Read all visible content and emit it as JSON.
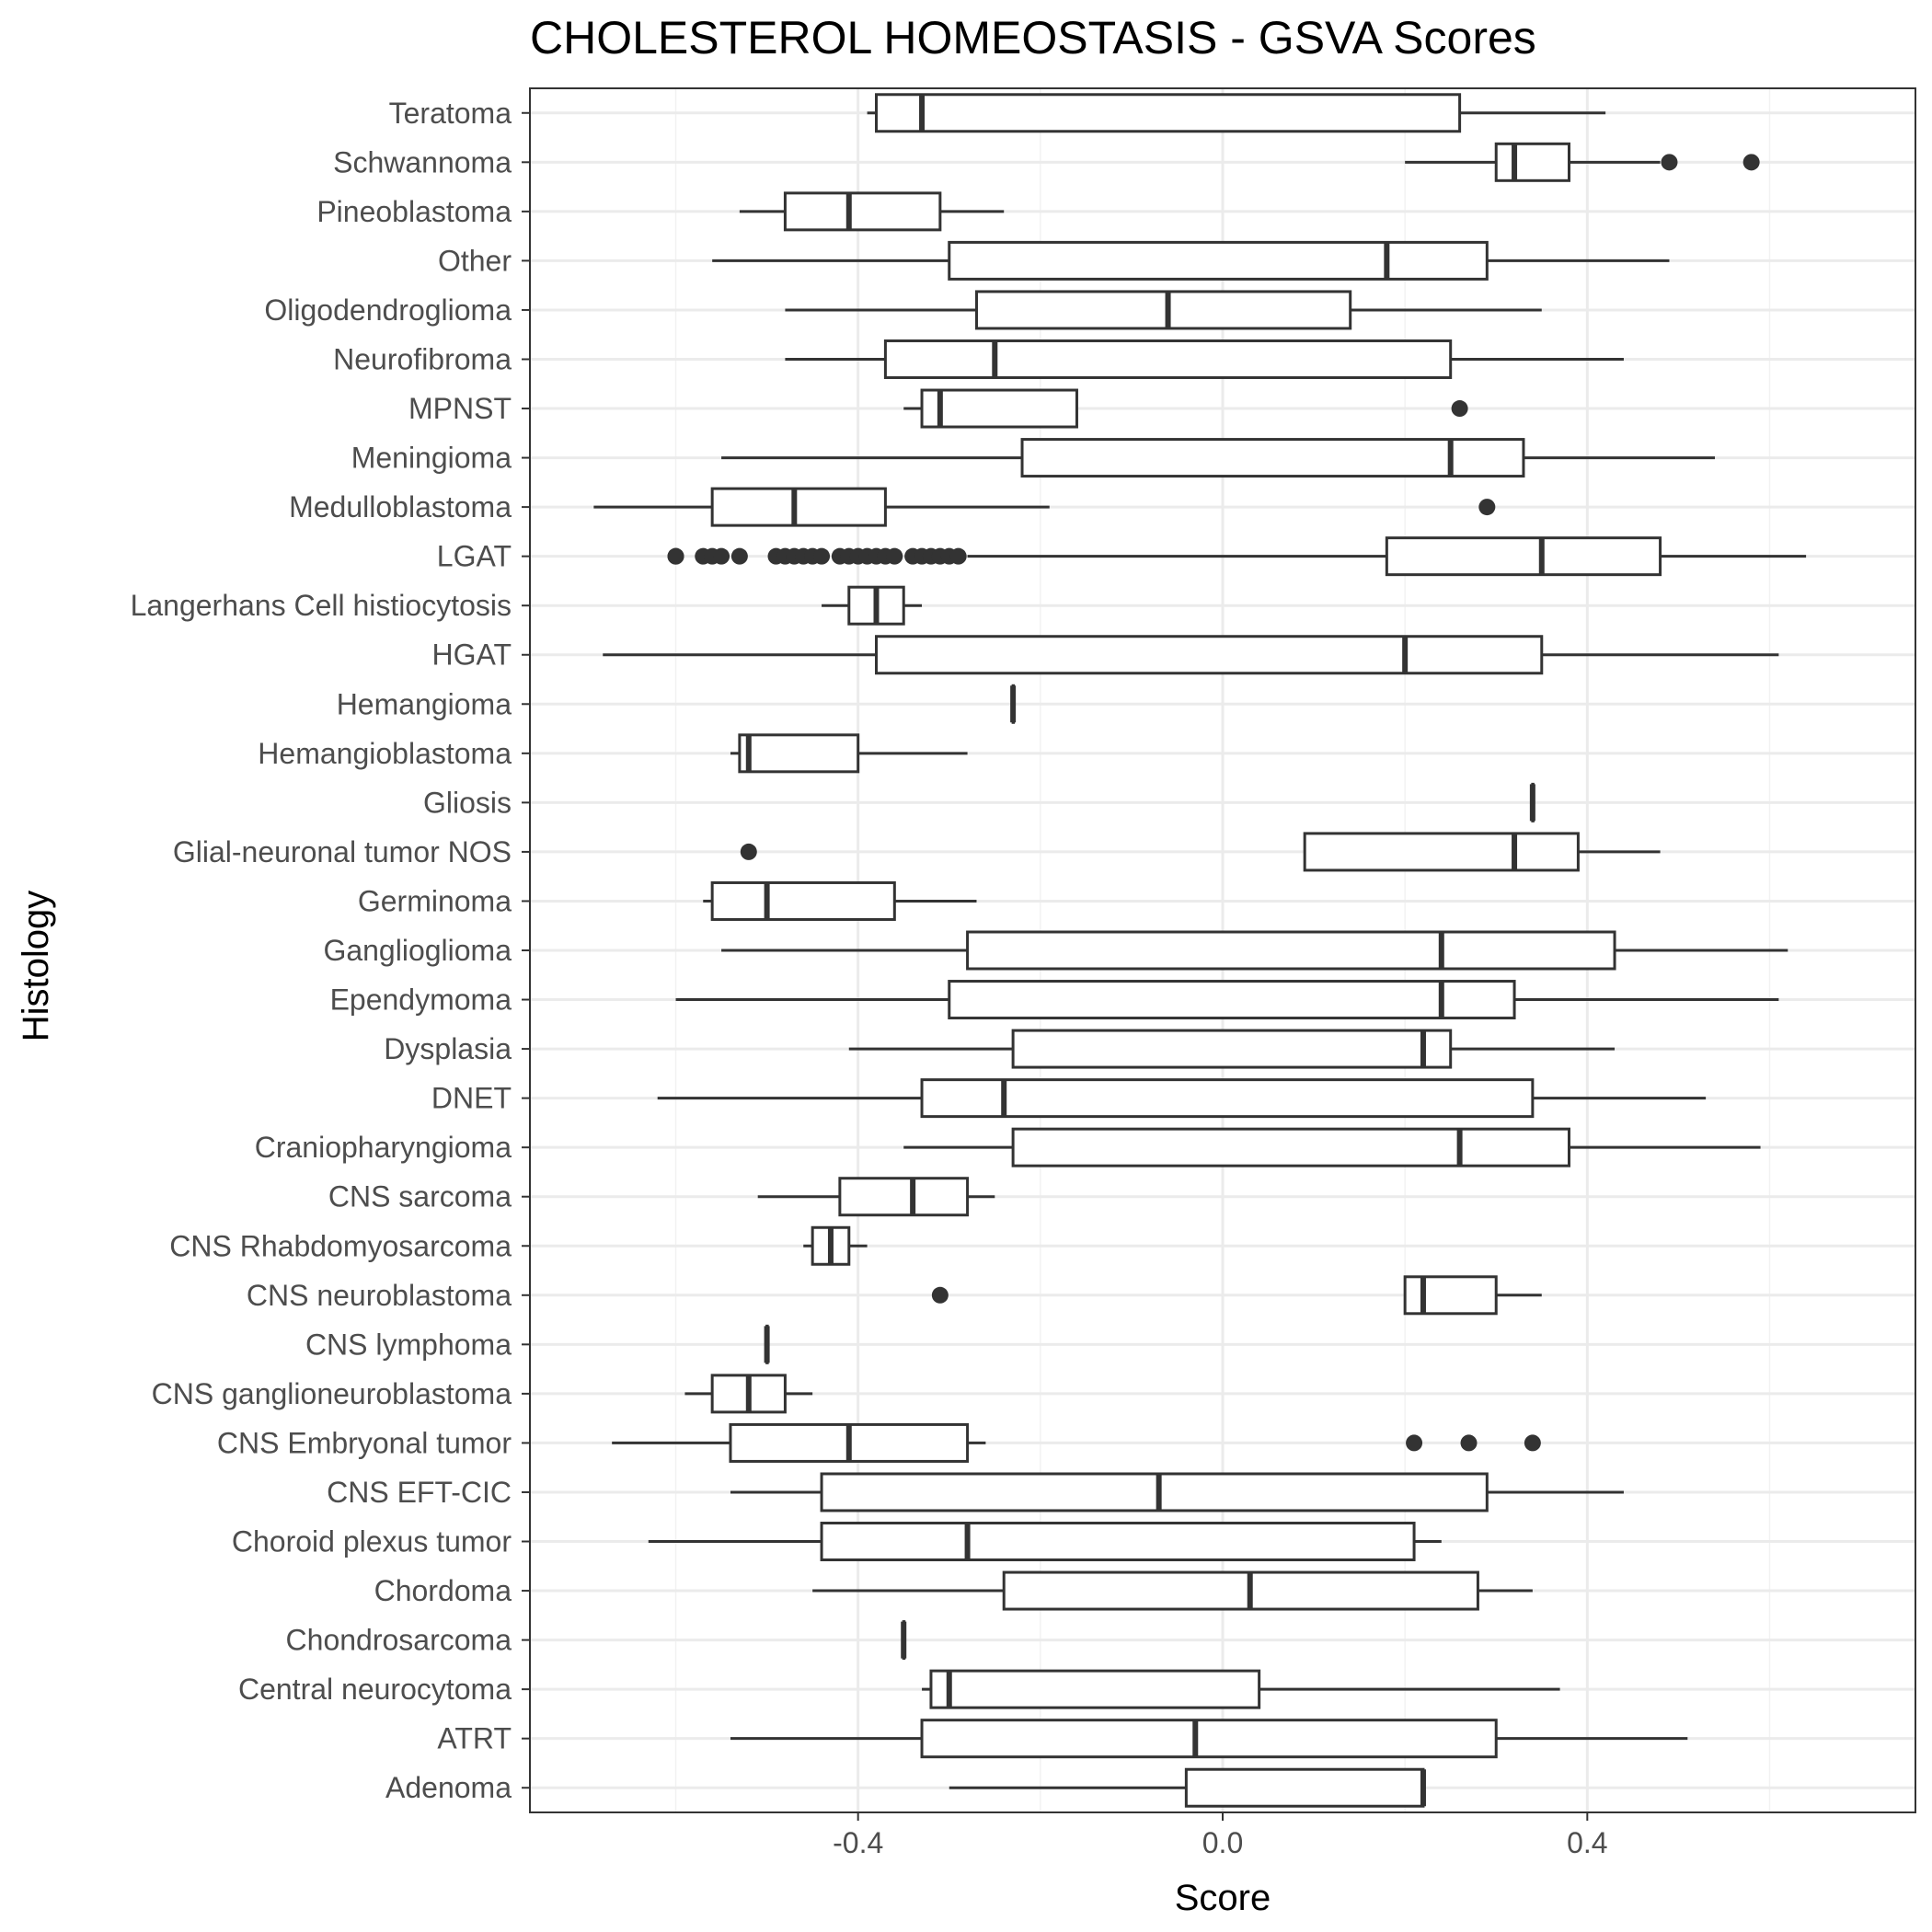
{
  "chart_data": {
    "type": "boxplot",
    "orientation": "horizontal",
    "title": "CHOLESTEROL HOMEOSTASIS - GSVA Scores",
    "xlabel": "Score",
    "ylabel": "Histology",
    "xlim": [
      -0.76,
      0.76
    ],
    "xticks": [
      -0.4,
      0.0,
      0.4
    ],
    "xtick_labels": [
      "-0.4",
      "0.0",
      "0.4"
    ],
    "grid": true,
    "legend": "none",
    "colors": {
      "box_fill": "#ffffff",
      "box_stroke": "#333333",
      "outlier": "#333333",
      "grid_major": "#ebebeb",
      "grid_minor": "#f2f2f2",
      "panel_border": "#333333",
      "tick_text": "#4d4d4d"
    },
    "boxes": [
      {
        "label": "Teratoma",
        "min": -0.39,
        "q1": -0.38,
        "median": -0.33,
        "q3": 0.26,
        "max": 0.42,
        "outliers": []
      },
      {
        "label": "Schwannoma",
        "min": 0.2,
        "q1": 0.3,
        "median": 0.32,
        "q3": 0.38,
        "max": 0.48,
        "outliers": [
          0.49,
          0.58
        ]
      },
      {
        "label": "Pineoblastoma",
        "min": -0.53,
        "q1": -0.48,
        "median": -0.41,
        "q3": -0.31,
        "max": -0.24,
        "outliers": []
      },
      {
        "label": "Other",
        "min": -0.56,
        "q1": -0.3,
        "median": 0.18,
        "q3": 0.29,
        "max": 0.49,
        "outliers": []
      },
      {
        "label": "Oligodendroglioma",
        "min": -0.48,
        "q1": -0.27,
        "median": -0.06,
        "q3": 0.14,
        "max": 0.35,
        "outliers": []
      },
      {
        "label": "Neurofibroma",
        "min": -0.48,
        "q1": -0.37,
        "median": -0.25,
        "q3": 0.25,
        "max": 0.44,
        "outliers": []
      },
      {
        "label": "MPNST",
        "min": -0.35,
        "q1": -0.33,
        "median": -0.31,
        "q3": -0.16,
        "max": -0.16,
        "outliers": [
          0.26
        ]
      },
      {
        "label": "Meningioma",
        "min": -0.55,
        "q1": -0.22,
        "median": 0.25,
        "q3": 0.33,
        "max": 0.54,
        "outliers": []
      },
      {
        "label": "Medulloblastoma",
        "min": -0.69,
        "q1": -0.56,
        "median": -0.47,
        "q3": -0.37,
        "max": -0.19,
        "outliers": [
          0.29
        ]
      },
      {
        "label": "LGAT",
        "min": -0.28,
        "q1": 0.18,
        "median": 0.35,
        "q3": 0.48,
        "max": 0.64,
        "outliers": [
          -0.6,
          -0.6,
          -0.57,
          -0.56,
          -0.55,
          -0.53,
          -0.49,
          -0.48,
          -0.47,
          -0.46,
          -0.45,
          -0.44,
          -0.42,
          -0.41,
          -0.4,
          -0.39,
          -0.38,
          -0.37,
          -0.36,
          -0.34,
          -0.33,
          -0.32,
          -0.31,
          -0.3,
          -0.29
        ]
      },
      {
        "label": "Langerhans Cell histiocytosis",
        "min": -0.44,
        "q1": -0.41,
        "median": -0.38,
        "q3": -0.35,
        "max": -0.33,
        "outliers": []
      },
      {
        "label": "HGAT",
        "min": -0.68,
        "q1": -0.38,
        "median": 0.2,
        "q3": 0.35,
        "max": 0.61,
        "outliers": []
      },
      {
        "label": "Hemangioma",
        "min": -0.23,
        "q1": -0.23,
        "median": -0.23,
        "q3": -0.23,
        "max": -0.23,
        "outliers": []
      },
      {
        "label": "Hemangioblastoma",
        "min": -0.54,
        "q1": -0.53,
        "median": -0.52,
        "q3": -0.4,
        "max": -0.28,
        "outliers": []
      },
      {
        "label": "Gliosis",
        "min": 0.34,
        "q1": 0.34,
        "median": 0.34,
        "q3": 0.34,
        "max": 0.34,
        "outliers": []
      },
      {
        "label": "Glial-neuronal tumor NOS",
        "min": 0.09,
        "q1": 0.09,
        "median": 0.32,
        "q3": 0.39,
        "max": 0.48,
        "outliers": [
          -0.52
        ]
      },
      {
        "label": "Germinoma",
        "min": -0.57,
        "q1": -0.56,
        "median": -0.5,
        "q3": -0.36,
        "max": -0.27,
        "outliers": []
      },
      {
        "label": "Ganglioglioma",
        "min": -0.55,
        "q1": -0.28,
        "median": 0.24,
        "q3": 0.43,
        "max": 0.62,
        "outliers": []
      },
      {
        "label": "Ependymoma",
        "min": -0.6,
        "q1": -0.3,
        "median": 0.24,
        "q3": 0.32,
        "max": 0.61,
        "outliers": []
      },
      {
        "label": "Dysplasia",
        "min": -0.41,
        "q1": -0.23,
        "median": 0.22,
        "q3": 0.25,
        "max": 0.43,
        "outliers": []
      },
      {
        "label": "DNET",
        "min": -0.62,
        "q1": -0.33,
        "median": -0.24,
        "q3": 0.34,
        "max": 0.53,
        "outliers": []
      },
      {
        "label": "Craniopharyngioma",
        "min": -0.35,
        "q1": -0.23,
        "median": 0.26,
        "q3": 0.38,
        "max": 0.59,
        "outliers": []
      },
      {
        "label": "CNS sarcoma",
        "min": -0.51,
        "q1": -0.42,
        "median": -0.34,
        "q3": -0.28,
        "max": -0.25,
        "outliers": []
      },
      {
        "label": "CNS Rhabdomyosarcoma",
        "min": -0.46,
        "q1": -0.45,
        "median": -0.43,
        "q3": -0.41,
        "max": -0.39,
        "outliers": []
      },
      {
        "label": "CNS neuroblastoma",
        "min": 0.2,
        "q1": 0.2,
        "median": 0.22,
        "q3": 0.3,
        "max": 0.35,
        "outliers": [
          -0.31
        ]
      },
      {
        "label": "CNS lymphoma",
        "min": -0.5,
        "q1": -0.5,
        "median": -0.5,
        "q3": -0.5,
        "max": -0.5,
        "outliers": []
      },
      {
        "label": "CNS ganglioneuroblastoma",
        "min": -0.59,
        "q1": -0.56,
        "median": -0.52,
        "q3": -0.48,
        "max": -0.45,
        "outliers": []
      },
      {
        "label": "CNS Embryonal tumor",
        "min": -0.67,
        "q1": -0.54,
        "median": -0.41,
        "q3": -0.28,
        "max": -0.26,
        "outliers": [
          0.21,
          0.27,
          0.34
        ]
      },
      {
        "label": "CNS EFT-CIC",
        "min": -0.54,
        "q1": -0.44,
        "median": -0.07,
        "q3": 0.29,
        "max": 0.44,
        "outliers": []
      },
      {
        "label": "Choroid plexus tumor",
        "min": -0.63,
        "q1": -0.44,
        "median": -0.28,
        "q3": 0.21,
        "max": 0.24,
        "outliers": []
      },
      {
        "label": "Chordoma",
        "min": -0.45,
        "q1": -0.24,
        "median": 0.03,
        "q3": 0.28,
        "max": 0.34,
        "outliers": []
      },
      {
        "label": "Chondrosarcoma",
        "min": -0.35,
        "q1": -0.35,
        "median": -0.35,
        "q3": -0.35,
        "max": -0.35,
        "outliers": []
      },
      {
        "label": "Central neurocytoma",
        "min": -0.33,
        "q1": -0.32,
        "median": -0.3,
        "q3": 0.04,
        "max": 0.37,
        "outliers": []
      },
      {
        "label": "ATRT",
        "min": -0.54,
        "q1": -0.33,
        "median": -0.03,
        "q3": 0.3,
        "max": 0.51,
        "outliers": []
      },
      {
        "label": "Adenoma",
        "min": -0.3,
        "q1": -0.04,
        "median": 0.22,
        "q3": 0.22,
        "max": 0.22,
        "outliers": []
      }
    ]
  }
}
